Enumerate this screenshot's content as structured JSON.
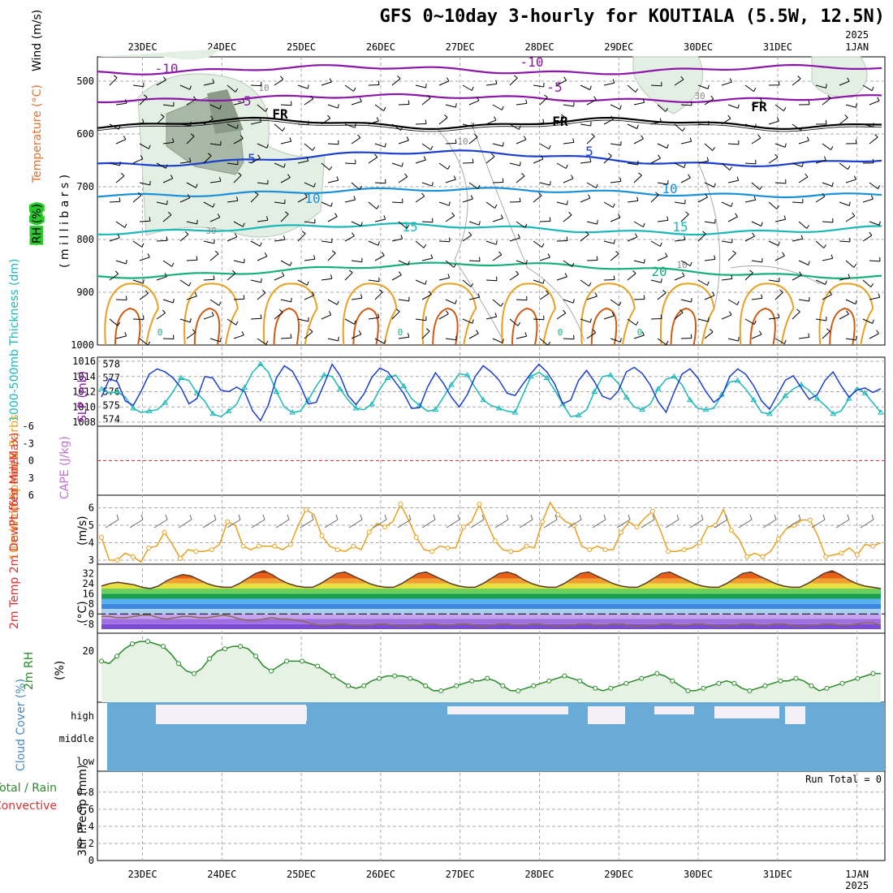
{
  "title": "GFS 0~10day 3-hourly for KOUTIALA (5.5W, 12.5N)",
  "colors": {
    "purple": "#8b16a8",
    "blue": "#1a3fcf",
    "lightblue": "#1a90d8",
    "cyan": "#1ab8b8",
    "green": "#17b07a",
    "orange": "#e8a020",
    "darkorange": "#d05a10",
    "rhgreen": "#2a8a2a",
    "cloud": "#6aaad6",
    "slp": "#1a3fcf",
    "thick": "#1ab8b8",
    "grid": "#999999"
  },
  "chart_data": [
    {
      "panel": "upper-air",
      "type": "line",
      "ylabel_parts": [
        "RH (%)",
        "Temperature (°C)",
        "Wind (m/s)"
      ],
      "ylabel_units": "( m i l l i b a r s )",
      "yticks": [
        "500",
        "600",
        "700",
        "800",
        "900",
        "1000"
      ],
      "contour_labels": [
        "-10",
        "-10",
        "-5",
        "-5",
        "FR",
        "FR",
        "FR",
        "5",
        "5",
        "10",
        "10",
        "15",
        "15",
        "20",
        "0",
        "0",
        "0",
        "0",
        "10",
        "10",
        "30",
        "30",
        "10"
      ]
    },
    {
      "panel": "thickness-slp",
      "type": "line",
      "ylabel_left": "1000-500mb Thickness (dm)",
      "ylabel_right": "SLP (mb)",
      "yticks_left": [
        "578",
        "577",
        "576",
        "575",
        "574"
      ],
      "yticks_right": [
        "1016",
        "1014",
        "1012",
        "1010",
        "1008"
      ],
      "series": [
        {
          "name": "Thickness",
          "values": [
            576.2,
            575.9,
            576.0,
            575.6,
            574.8,
            574.5,
            574.6,
            574.7,
            575.2,
            576.0,
            577.0,
            576.8,
            575.9,
            575.3,
            574.4,
            574.2,
            574.6,
            575.1,
            576.3,
            577.4,
            578.0,
            577.4,
            576.0,
            574.9,
            574.5,
            574.6,
            575.4,
            576.4,
            577.2,
            577.1,
            576.2,
            575.4,
            574.8,
            574.7,
            575.1,
            576.2,
            577.0,
            577.2,
            576.4,
            575.5,
            575.0,
            574.6,
            574.7,
            575.6,
            576.5,
            577.3,
            577.2,
            576.3,
            575.4,
            575.0,
            574.8,
            574.6,
            574.5,
            575.8,
            577.1,
            577.4,
            577.0,
            576.1,
            575.1,
            574.2,
            574.3,
            574.7,
            576.0,
            577.1,
            577.2,
            576.6,
            575.6,
            574.9,
            574.7,
            575.1,
            576.2,
            576.9,
            577.1,
            576.5,
            575.4,
            574.8,
            574.7,
            574.8,
            575.8,
            576.7,
            576.8,
            576.2,
            575.4,
            574.5,
            574.4,
            575.0,
            575.7,
            576.2,
            576.5,
            576.1,
            575.5,
            575.0,
            574.4,
            574.6,
            575.5,
            576.3,
            575.9,
            575.2,
            574.5
          ]
        },
        {
          "name": "SLP",
          "values": [
            1011.3,
            1013.7,
            1013.3,
            1010.8,
            1010.2,
            1012.1,
            1014.3,
            1015.0,
            1014.6,
            1013.8,
            1012.5,
            1010.4,
            1011.1,
            1014.0,
            1013.8,
            1012.2,
            1012.0,
            1012.6,
            1012.0,
            1009.5,
            1008.2,
            1010.3,
            1013.8,
            1015.4,
            1014.7,
            1012.8,
            1010.4,
            1010.6,
            1013.0,
            1015.6,
            1014.1,
            1011.5,
            1010.3,
            1011.7,
            1013.9,
            1015.1,
            1014.6,
            1013.2,
            1011.8,
            1009.8,
            1009.9,
            1012.6,
            1014.5,
            1013.1,
            1011.3,
            1010.0,
            1011.6,
            1014.0,
            1015.4,
            1014.6,
            1013.5,
            1011.8,
            1011.5,
            1013.0,
            1014.4,
            1015.6,
            1014.6,
            1013.0,
            1010.4,
            1010.9,
            1013.5,
            1014.8,
            1013.3,
            1011.4,
            1011.0,
            1012.1,
            1014.6,
            1015.2,
            1014.4,
            1012.9,
            1010.7,
            1009.3,
            1011.9,
            1014.3,
            1015.0,
            1013.8,
            1012.0,
            1010.6,
            1011.4,
            1014.0,
            1015.0,
            1014.3,
            1012.8,
            1010.8,
            1009.7,
            1011.6,
            1013.5,
            1014.1,
            1012.5,
            1011.0,
            1011.6,
            1013.5,
            1014.6,
            1012.8,
            1011.3,
            1012.2,
            1012.5,
            1011.9,
            1012.4
          ]
        }
      ]
    },
    {
      "panel": "cape-li",
      "type": "line",
      "ylabel_left": "Lifted Index",
      "ylabel_right": "CAPE (J/kg)",
      "yticks": [
        "-6",
        "-3",
        "0",
        "3",
        "6"
      ]
    },
    {
      "panel": "wind10m",
      "type": "line",
      "ylabel": "10m Wind Speed & Barbs",
      "ylabel_units": "(m/s)",
      "yticks": [
        "6",
        "5",
        "4",
        "3"
      ],
      "series": [
        {
          "name": "10m Wind Speed",
          "values": [
            4.3,
            3.0,
            3.0,
            3.4,
            3.2,
            2.9,
            3.7,
            3.8,
            4.6,
            3.9,
            3.1,
            3.6,
            3.5,
            3.5,
            3.6,
            3.9,
            5.2,
            5.0,
            3.8,
            3.6,
            3.8,
            3.8,
            3.8,
            3.6,
            3.9,
            5.0,
            5.9,
            5.6,
            4.4,
            3.8,
            3.6,
            3.5,
            3.8,
            3.6,
            4.6,
            5.1,
            4.9,
            5.2,
            6.2,
            5.3,
            4.3,
            3.6,
            3.5,
            3.8,
            3.7,
            3.7,
            4.9,
            5.2,
            6.2,
            5.1,
            4.1,
            3.6,
            3.5,
            3.5,
            3.8,
            3.7,
            5.2,
            6.3,
            5.6,
            5.2,
            5.0,
            3.8,
            3.6,
            3.8,
            3.6,
            3.6,
            4.6,
            5.2,
            4.9,
            5.4,
            5.8,
            4.7,
            3.5,
            3.5,
            3.6,
            3.7,
            4.0,
            4.9,
            5.0,
            5.9,
            4.7,
            4.2,
            3.2,
            3.4,
            3.2,
            3.5,
            4.2,
            4.8,
            5.0,
            5.3,
            5.3,
            4.4,
            3.2,
            3.3,
            3.4,
            3.7,
            3.3,
            3.9,
            3.8,
            4.0
          ]
        }
      ]
    },
    {
      "panel": "temp2m",
      "type": "area",
      "ylabel": "2m Temp 2m DewPt (6hr Min/Max)",
      "ylabel_units": "(°C)",
      "yticks": [
        "32",
        "24",
        "16",
        "8",
        "0",
        "-8"
      ],
      "series": [
        {
          "name": "2m Temp",
          "values": [
            22,
            24,
            25,
            24,
            23,
            21,
            20,
            22,
            26,
            29,
            31,
            30,
            27,
            24,
            22,
            21,
            21,
            24,
            28,
            32,
            34,
            31,
            27,
            24,
            22,
            21,
            21,
            24,
            28,
            32,
            33,
            30,
            27,
            24,
            22,
            21,
            21,
            24,
            28,
            32,
            33,
            30,
            27,
            24,
            22,
            21,
            21,
            24,
            28,
            32,
            33,
            31,
            27,
            24,
            22,
            21,
            21,
            24,
            28,
            32,
            33,
            30,
            27,
            24,
            22,
            21,
            21,
            24,
            28,
            32,
            33,
            30,
            27,
            24,
            22,
            21,
            21,
            24,
            28,
            32,
            33,
            30,
            27,
            24,
            22,
            21,
            21,
            24,
            28,
            32,
            34,
            31,
            27,
            24,
            22,
            21,
            20
          ]
        },
        {
          "name": "2m DewPt",
          "values": [
            -2,
            -2,
            -3,
            -3,
            -2,
            -1,
            -1,
            -3,
            -4,
            -3,
            -2,
            -2,
            -3,
            -3,
            -2,
            -1,
            -2,
            -4,
            -5,
            -5,
            -4,
            -3,
            -4,
            -4,
            -5,
            -6,
            -8,
            -9,
            -9,
            -8,
            -8,
            -9,
            -9,
            -9,
            -8,
            -8,
            -9,
            -10,
            -9,
            -9,
            -8,
            -8,
            -9,
            -9,
            -8,
            -8,
            -9,
            -10,
            -9,
            -8,
            -8,
            -9,
            -9,
            -8,
            -8,
            -9,
            -10,
            -9,
            -9,
            -8,
            -8,
            -9,
            -9,
            -8,
            -8,
            -9,
            -10,
            -9,
            -9,
            -8,
            -8,
            -9,
            -9,
            -8,
            -8,
            -9,
            -10,
            -9,
            -9,
            -8,
            -8,
            -9,
            -9,
            -8,
            -8,
            -9,
            -10,
            -9,
            -9,
            -8,
            -8,
            -9,
            -9,
            -8,
            -7,
            -7,
            -9
          ]
        }
      ]
    },
    {
      "panel": "rh2m",
      "type": "line",
      "ylabel": "2m RH",
      "ylabel_units": "(%)",
      "yticks": [
        "20"
      ],
      "series": [
        {
          "name": "2m RH",
          "values": [
            16,
            15,
            18,
            21,
            23,
            24,
            24,
            23,
            22,
            19,
            15,
            12,
            11,
            13,
            17,
            20,
            21,
            22,
            22,
            21,
            18,
            14,
            12,
            14,
            16,
            16,
            16,
            15,
            14,
            12,
            10,
            8,
            6,
            5,
            6,
            8,
            9,
            10,
            10,
            10,
            9,
            8,
            6,
            4,
            4,
            5,
            6,
            7,
            8,
            8,
            9,
            8,
            6,
            4,
            4,
            5,
            6,
            7,
            8,
            9,
            10,
            9,
            8,
            6,
            5,
            4,
            5,
            6,
            7,
            8,
            9,
            10,
            11,
            10,
            8,
            6,
            4,
            4,
            5,
            6,
            7,
            8,
            7,
            5,
            4,
            5,
            6,
            7,
            8,
            8,
            9,
            8,
            6,
            4,
            5,
            6,
            7,
            8,
            9,
            10,
            11,
            11
          ]
        }
      ]
    },
    {
      "panel": "cloud",
      "type": "area",
      "ylabel": "Cloud Cover (%)",
      "yticks": [
        "high",
        "middle",
        "low"
      ]
    },
    {
      "panel": "precip",
      "type": "bar",
      "ylabel_left": "Total / Rain Convective",
      "ylabel": "3hr Precip (mm)",
      "yticks": [
        "0.8",
        "0.6",
        "0.4",
        "0.2",
        "0"
      ],
      "annotation": "Run Total = 0"
    }
  ],
  "xaxis": {
    "top_labels": [
      "23DEC",
      "24DEC",
      "25DEC",
      "26DEC",
      "27DEC",
      "28DEC",
      "29DEC",
      "30DEC",
      "31DEC",
      "1JAN"
    ],
    "bottom_labels": [
      "23DEC",
      "24DEC",
      "25DEC",
      "26DEC",
      "27DEC",
      "28DEC",
      "29DEC",
      "30DEC",
      "31DEC",
      "1JAN"
    ],
    "year_top": "2025",
    "year_bottom": "2025"
  }
}
